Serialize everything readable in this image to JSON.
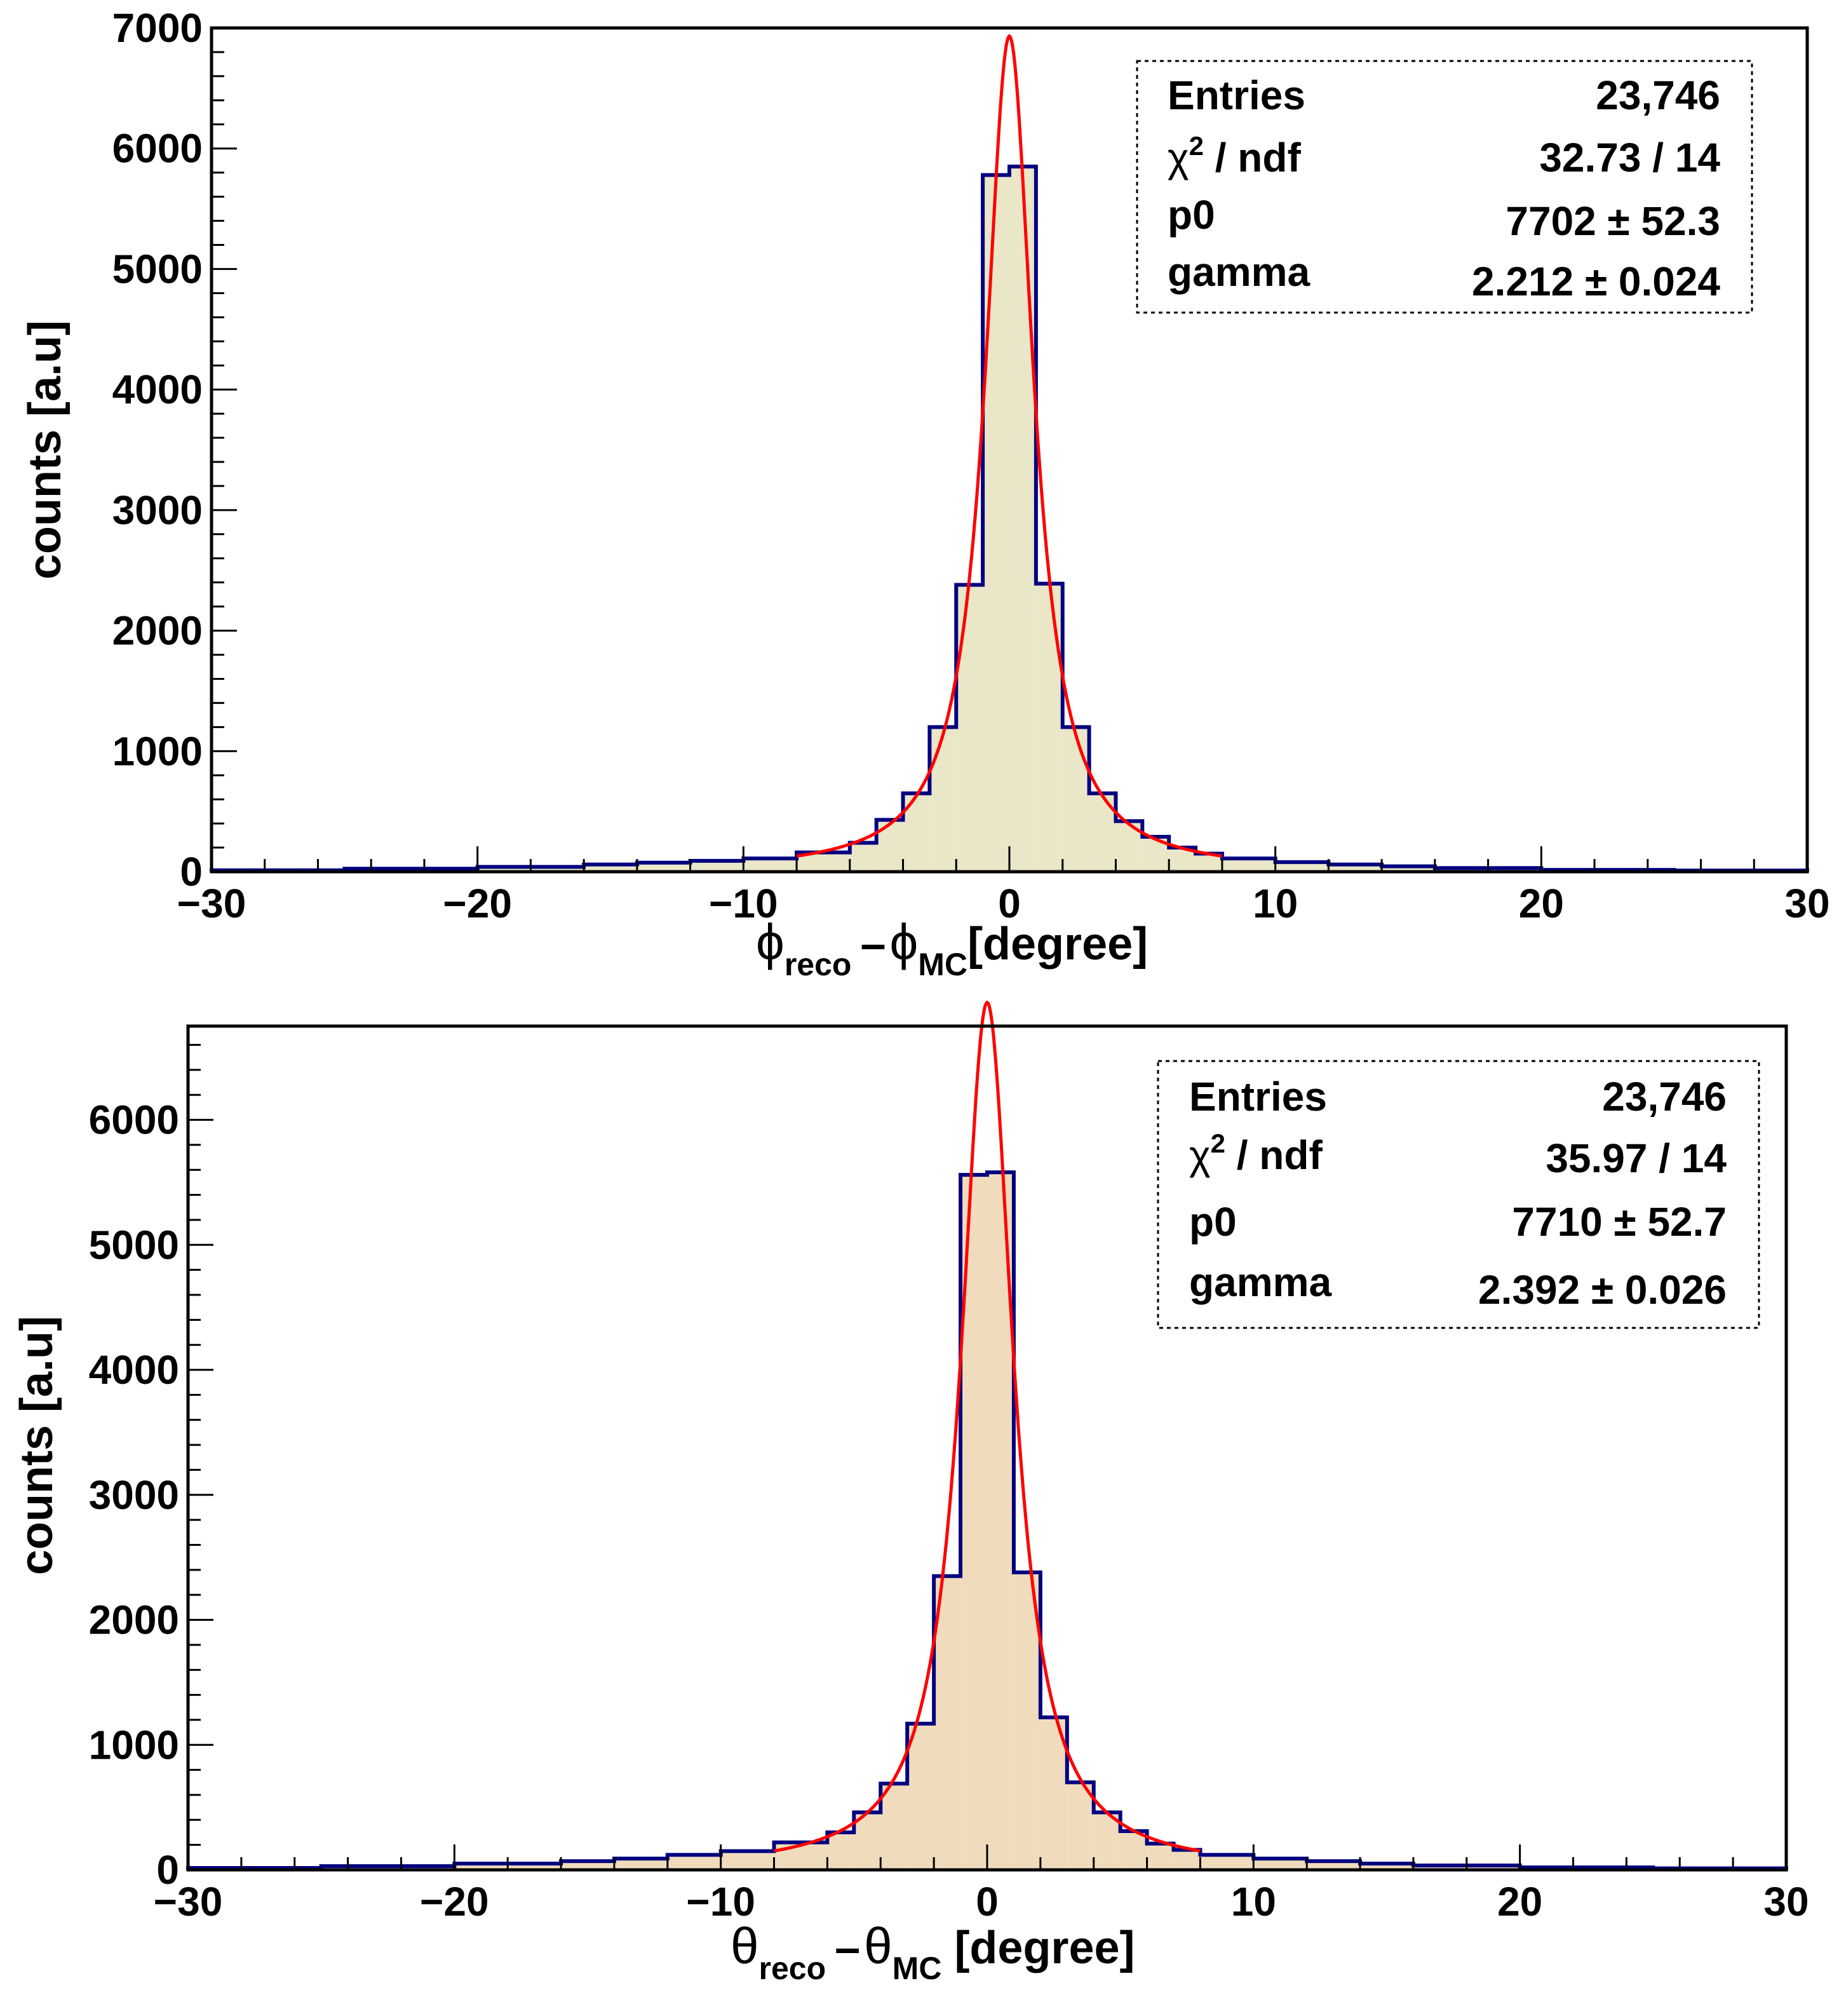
{
  "chart_data": [
    {
      "type": "histogram",
      "panel": "top",
      "xlabel": {
        "sym": "ϕ",
        "sub1": "reco",
        "dash": "–",
        "sym2": "ϕ",
        "sub2": "MC",
        "unit": "[degree]"
      },
      "ylabel": "counts [a.u]",
      "xlim": [
        -30,
        30
      ],
      "ylim": [
        0,
        7000
      ],
      "x_ticks": [
        -30,
        -20,
        -10,
        0,
        10,
        20,
        30
      ],
      "x_tick_labels": [
        "−30",
        "−20",
        "−10",
        "0",
        "10",
        "20",
        "30"
      ],
      "y_ticks": [
        0,
        1000,
        2000,
        3000,
        4000,
        5000,
        6000,
        7000
      ],
      "y_tick_labels": [
        "0",
        "1000",
        "2000",
        "3000",
        "4000",
        "5000",
        "6000",
        "7000"
      ],
      "bin_edges": [
        -30,
        -25,
        -20,
        -16,
        -14,
        -12,
        -10,
        -8,
        -6,
        -5,
        -4,
        -3,
        -2,
        -1,
        0,
        1,
        2,
        3,
        4,
        5,
        6,
        7,
        8,
        10,
        12,
        14,
        16,
        20,
        25,
        30
      ],
      "counts": [
        12,
        25,
        40,
        60,
        75,
        90,
        110,
        160,
        240,
        430,
        650,
        1200,
        2380,
        5780,
        5850,
        2390,
        1200,
        650,
        420,
        290,
        200,
        150,
        110,
        80,
        60,
        45,
        30,
        15,
        10
      ],
      "fill_color": "#eae6c8",
      "line_color": "#000080",
      "fit": {
        "function": "cauchy",
        "p0": 7702,
        "gamma": 2.212,
        "center": 0,
        "range": [
          -8,
          8
        ],
        "color": "#ff0000"
      },
      "stats": {
        "entries_label": "Entries",
        "entries": "23746",
        "chi2_label": "χ",
        "chi2_sup": "2",
        "chi2_rest": " / ndf",
        "chi2": "32.73 / 14",
        "p0_label": "p0",
        "p0": "7702 ± 52.3",
        "gamma_label": "gamma",
        "gamma": "2.212 ± 0.024"
      }
    },
    {
      "type": "histogram",
      "panel": "bottom",
      "xlabel": {
        "sym": "θ",
        "sub1": "reco",
        "dash": "–",
        "sym2": "θ",
        "sub2": "MC",
        "unit": "[degree]"
      },
      "ylabel": "counts [a.u]",
      "xlim": [
        -30,
        30
      ],
      "ylim": [
        0,
        6750
      ],
      "x_ticks": [
        -30,
        -20,
        -10,
        0,
        10,
        20,
        30
      ],
      "x_tick_labels": [
        "−30",
        "−20",
        "−10",
        "0",
        "10",
        "20",
        "30"
      ],
      "y_ticks": [
        0,
        1000,
        2000,
        3000,
        4000,
        5000,
        6000
      ],
      "y_tick_labels": [
        "0",
        "1000",
        "2000",
        "3000",
        "4000",
        "5000",
        "6000"
      ],
      "bin_edges": [
        -30,
        -25,
        -20,
        -16,
        -14,
        -12,
        -10,
        -8,
        -6,
        -5,
        -4,
        -3,
        -2,
        -1,
        0,
        1,
        2,
        3,
        4,
        5,
        6,
        7,
        8,
        10,
        12,
        14,
        16,
        20,
        25,
        30
      ],
      "counts": [
        15,
        30,
        50,
        70,
        90,
        120,
        150,
        220,
        300,
        460,
        690,
        1170,
        2350,
        5560,
        5580,
        2380,
        1220,
        700,
        460,
        310,
        210,
        160,
        120,
        90,
        70,
        50,
        35,
        20,
        12
      ],
      "fill_color": "#f0dcbc",
      "line_color": "#000080",
      "fit": {
        "function": "cauchy",
        "p0": 7710,
        "gamma": 2.392,
        "center": 0,
        "range": [
          -8,
          8
        ],
        "color": "#ff0000"
      },
      "stats": {
        "entries_label": "Entries",
        "entries": "23746",
        "chi2_label": "χ",
        "chi2_sup": "2",
        "chi2_rest": " / ndf",
        "chi2": "35.97 / 14",
        "p0_label": "p0",
        "p0": "7710 ± 52.7",
        "gamma_label": "gamma",
        "gamma": "2.392 ± 0.026"
      }
    }
  ]
}
